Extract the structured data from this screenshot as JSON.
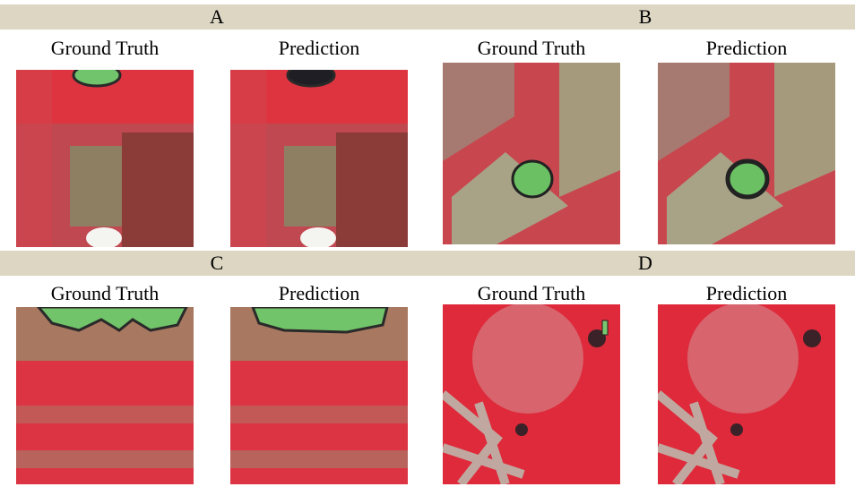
{
  "panels": [
    {
      "label": "A",
      "ground_truth_title": "Ground Truth",
      "prediction_title": "Prediction"
    },
    {
      "label": "B",
      "ground_truth_title": "Ground Truth",
      "prediction_title": "Prediction"
    },
    {
      "label": "C",
      "ground_truth_title": "Ground Truth",
      "prediction_title": "Prediction"
    },
    {
      "label": "D",
      "ground_truth_title": "Ground Truth",
      "prediction_title": "Prediction"
    }
  ]
}
